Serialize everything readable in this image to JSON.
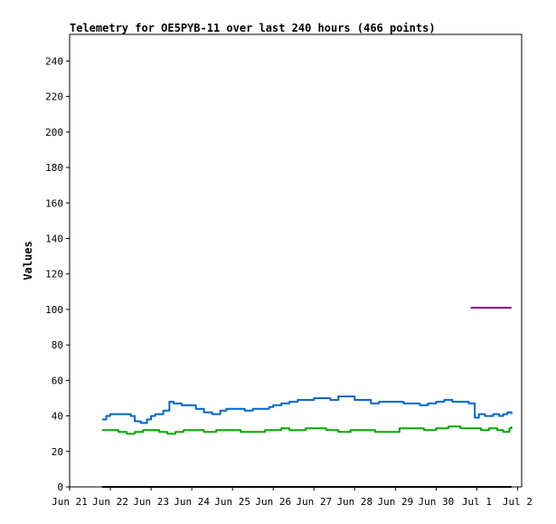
{
  "chart_data": {
    "type": "line",
    "title": "Telemetry for OE5PYB-11 over last 240 hours (466 points)",
    "ylabel": "Values",
    "xlabel": "",
    "ylim": [
      0,
      255
    ],
    "y_ticks": [
      0,
      20,
      40,
      60,
      80,
      100,
      120,
      140,
      160,
      180,
      200,
      220,
      240
    ],
    "x_ticks": [
      {
        "day": 0,
        "label": "Jun 21"
      },
      {
        "day": 1,
        "label": "Jun 22"
      },
      {
        "day": 2,
        "label": "Jun 23"
      },
      {
        "day": 3,
        "label": "Jun 24"
      },
      {
        "day": 4,
        "label": "Jun 25"
      },
      {
        "day": 5,
        "label": "Jun 26"
      },
      {
        "day": 6,
        "label": "Jun 27"
      },
      {
        "day": 7,
        "label": "Jun 28"
      },
      {
        "day": 8,
        "label": "Jun 29"
      },
      {
        "day": 9,
        "label": "Jun 30"
      },
      {
        "day": 10,
        "label": "Jul 1"
      },
      {
        "day": 11,
        "label": "Jul 2"
      }
    ],
    "xlim": [
      0,
      11.1
    ],
    "grid": false,
    "series": [
      {
        "color": "#0066cc",
        "x": [
          0.8,
          0.9,
          1.0,
          1.2,
          1.5,
          1.6,
          1.75,
          1.9,
          2.0,
          2.1,
          2.3,
          2.45,
          2.55,
          2.65,
          2.75,
          2.9,
          3.1,
          3.3,
          3.5,
          3.7,
          3.85,
          4.0,
          4.3,
          4.5,
          4.7,
          4.9,
          5.0,
          5.2,
          5.4,
          5.6,
          5.8,
          6.0,
          6.2,
          6.4,
          6.6,
          6.8,
          7.0,
          7.2,
          7.4,
          7.6,
          7.8,
          8.0,
          8.2,
          8.4,
          8.6,
          8.8,
          9.0,
          9.2,
          9.4,
          9.6,
          9.8,
          9.95,
          10.05,
          10.2,
          10.4,
          10.55,
          10.65,
          10.75,
          10.85
        ],
        "values": [
          38,
          40,
          41,
          41,
          40,
          37,
          36,
          38,
          40,
          41,
          43,
          48,
          47,
          47,
          46,
          46,
          44,
          42,
          41,
          43,
          44,
          44,
          43,
          44,
          44,
          45,
          46,
          47,
          48,
          49,
          49,
          50,
          50,
          49,
          51,
          51,
          49,
          49,
          47,
          48,
          48,
          48,
          47,
          47,
          46,
          47,
          48,
          49,
          48,
          48,
          47,
          39,
          41,
          40,
          41,
          40,
          41,
          42,
          41
        ]
      },
      {
        "color": "#00aa00",
        "x": [
          0.8,
          1.0,
          1.2,
          1.4,
          1.6,
          1.8,
          2.0,
          2.2,
          2.4,
          2.6,
          2.8,
          3.0,
          3.3,
          3.6,
          3.9,
          4.2,
          4.5,
          4.8,
          5.0,
          5.2,
          5.4,
          5.6,
          5.8,
          6.0,
          6.3,
          6.6,
          6.9,
          7.2,
          7.5,
          7.8,
          8.1,
          8.4,
          8.7,
          9.0,
          9.3,
          9.6,
          9.9,
          10.1,
          10.3,
          10.5,
          10.65,
          10.8,
          10.85
        ],
        "values": [
          32,
          32,
          31,
          30,
          31,
          32,
          32,
          31,
          30,
          31,
          32,
          32,
          31,
          32,
          32,
          31,
          31,
          32,
          32,
          33,
          32,
          32,
          33,
          33,
          32,
          31,
          32,
          32,
          31,
          31,
          33,
          33,
          32,
          33,
          34,
          33,
          33,
          32,
          33,
          32,
          31,
          33,
          34
        ]
      },
      {
        "color": "#880088",
        "x": [
          9.85,
          10.85
        ],
        "values": [
          101,
          101
        ]
      },
      {
        "color": "#000000",
        "x": [
          0.8,
          10.85
        ],
        "values": [
          0,
          0
        ]
      }
    ]
  }
}
